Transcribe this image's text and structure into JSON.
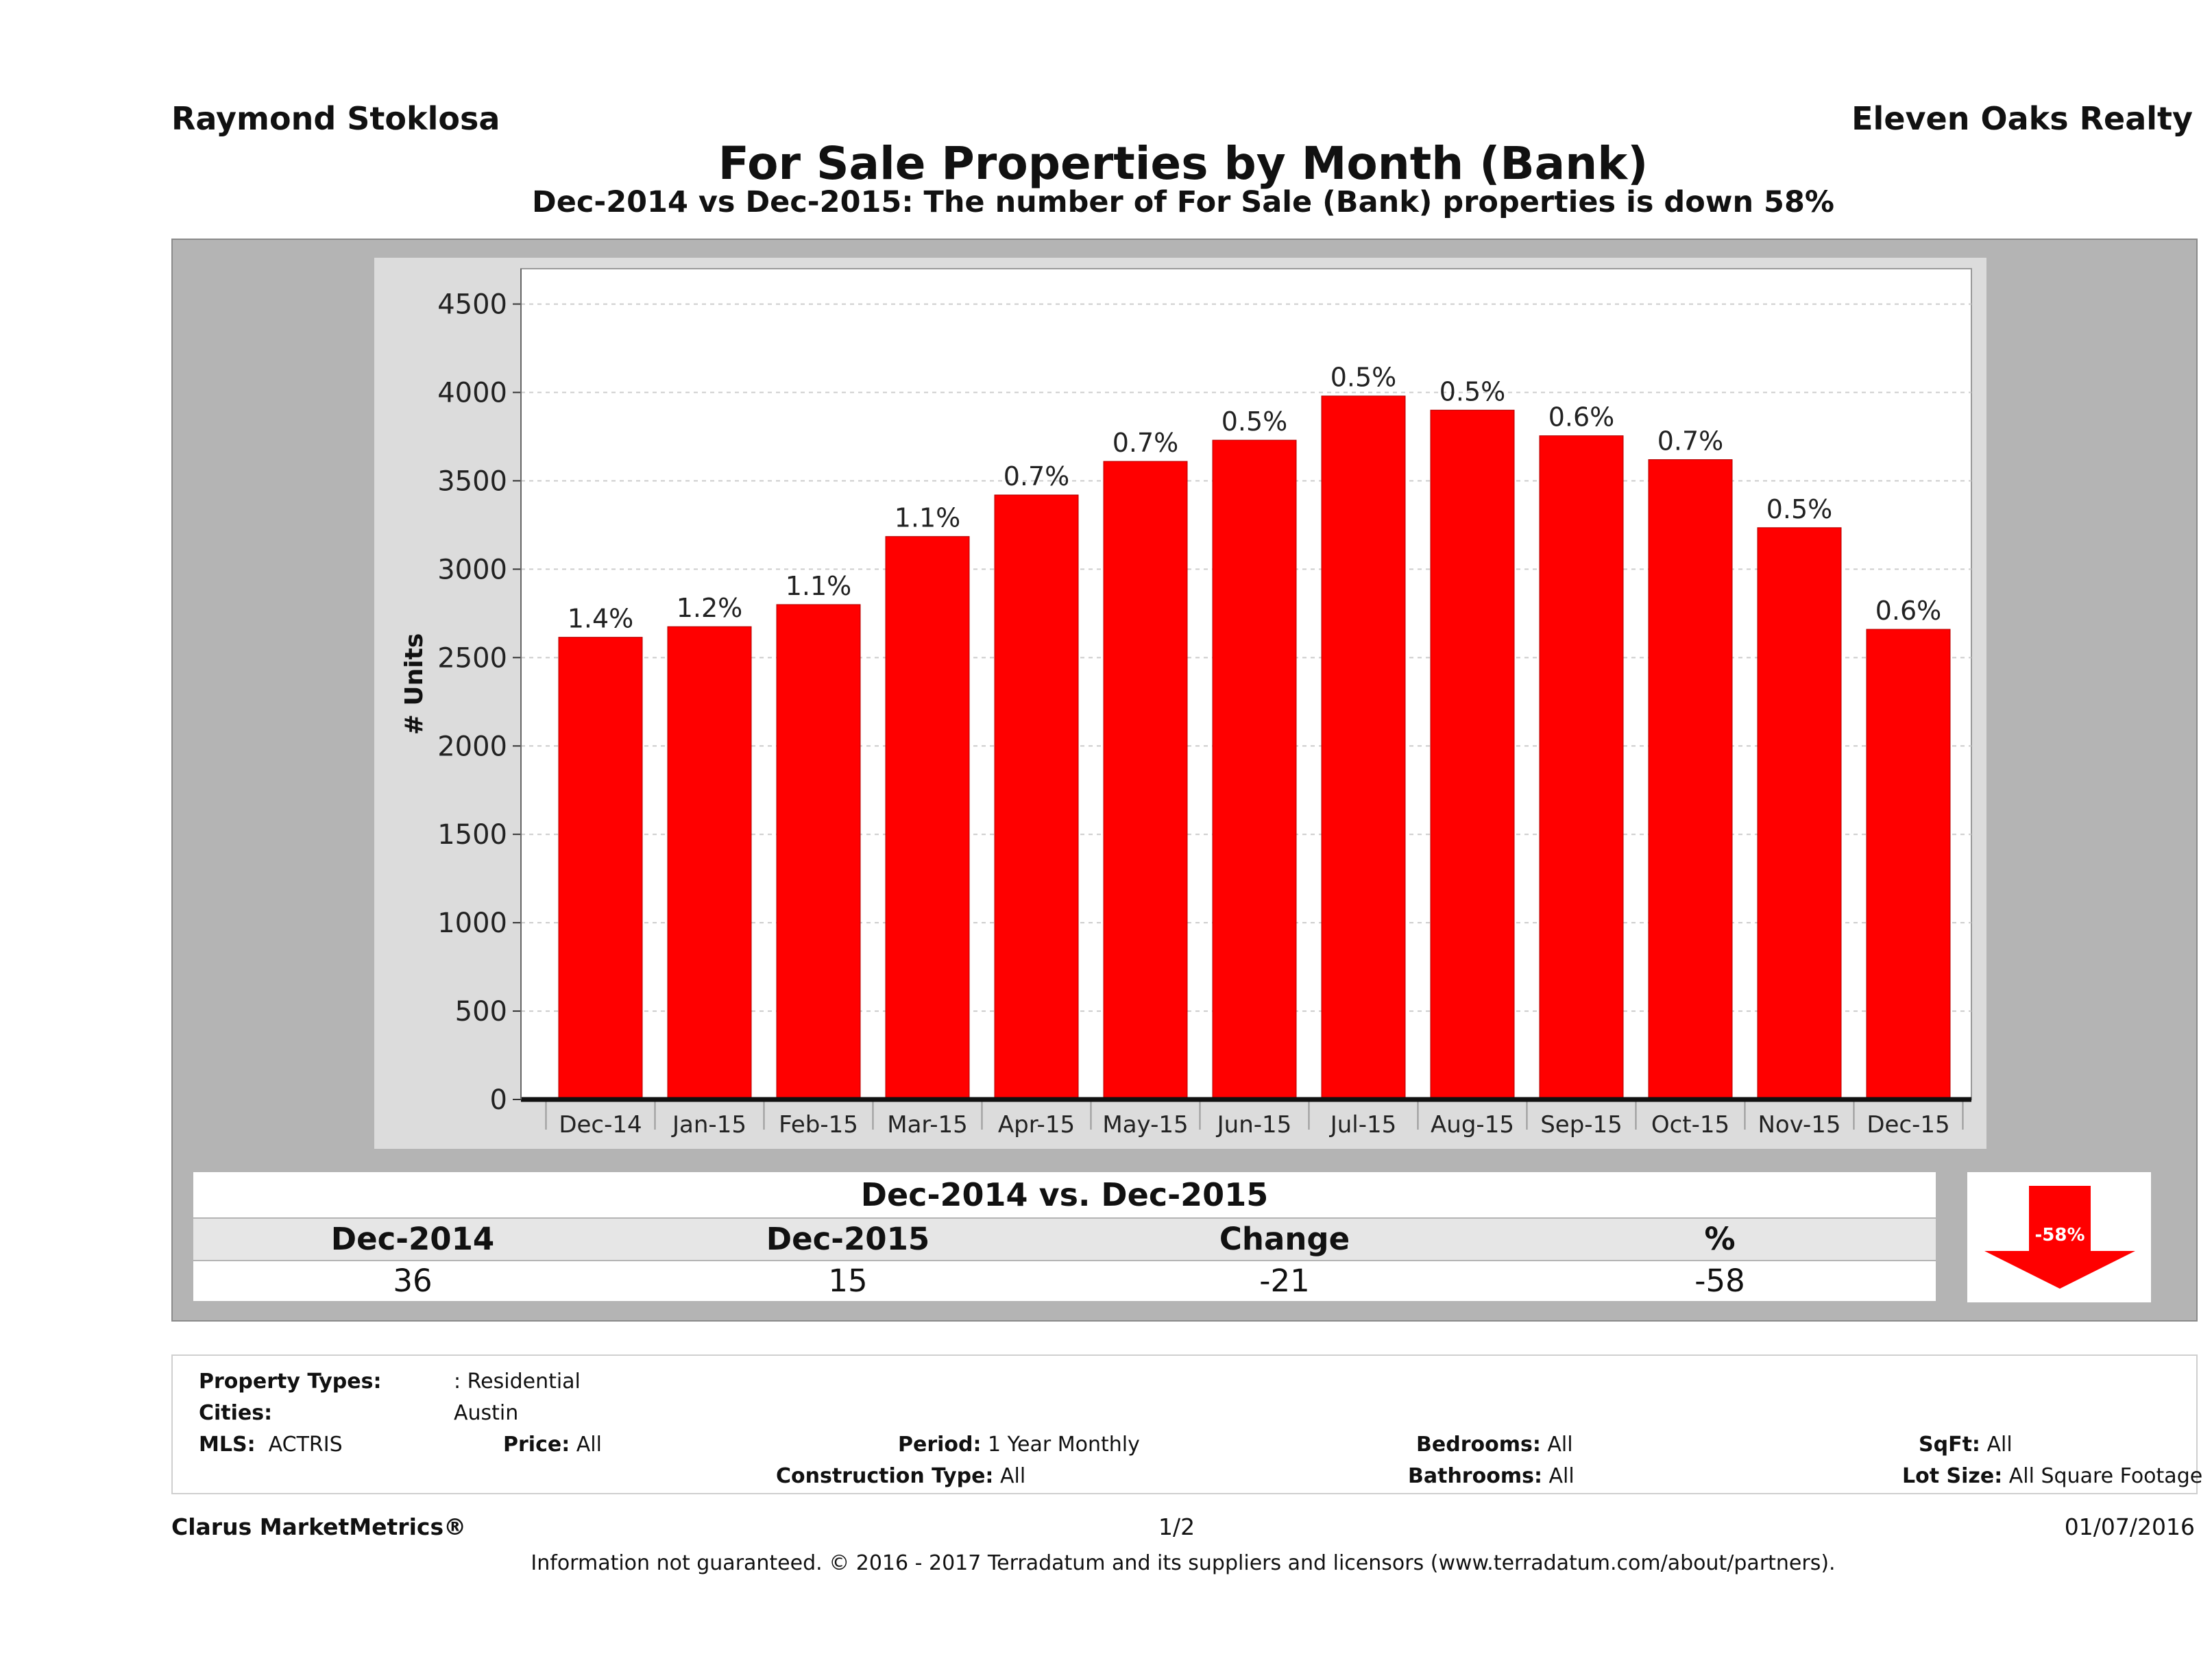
{
  "header": {
    "agent": "Raymond Stoklosa",
    "company": "Eleven Oaks Realty",
    "title": "For Sale Properties by Month (Bank)",
    "subtitle": "Dec-2014 vs Dec-2015: The number of For Sale (Bank)  properties is down 58%"
  },
  "chart_data": {
    "type": "bar",
    "categories": [
      "Dec-14",
      "Jan-15",
      "Feb-15",
      "Mar-15",
      "Apr-15",
      "May-15",
      "Jun-15",
      "Jul-15",
      "Aug-15",
      "Sep-15",
      "Oct-15",
      "Nov-15",
      "Dec-15"
    ],
    "values": [
      2615,
      2675,
      2800,
      3185,
      3420,
      3610,
      3730,
      3980,
      3900,
      3755,
      3620,
      3235,
      2660
    ],
    "data_labels": [
      "1.4%",
      "1.2%",
      "1.1%",
      "1.1%",
      "0.7%",
      "0.7%",
      "0.5%",
      "0.5%",
      "0.5%",
      "0.6%",
      "0.7%",
      "0.5%",
      "0.6%"
    ],
    "ylabel": "# Units",
    "xlabel": "",
    "ylim": [
      0,
      4700
    ],
    "yticks": [
      0,
      500,
      1000,
      1500,
      2000,
      2500,
      3000,
      3500,
      4000,
      4500
    ],
    "grid": true,
    "bar_color": "#ff0000"
  },
  "summary": {
    "heading": "Dec-2014 vs. Dec-2015",
    "labels": [
      "Dec-2014",
      "Dec-2015",
      "Change",
      "%"
    ],
    "values": [
      "36",
      "15",
      "-21",
      "-58"
    ],
    "arrow_label": "-58%",
    "arrow_color": "#ff0000"
  },
  "criteria": {
    "property_types_label": "Property Types:",
    "property_types_value": ": Residential",
    "cities_label": "Cities:",
    "cities_value": "Austin",
    "mls_label": "MLS:",
    "mls_value": "ACTRIS",
    "price_label": "Price:",
    "price_value": "All",
    "period_label": "Period:",
    "period_value": "1 Year Monthly",
    "construction_label": "Construction Type:",
    "construction_value": "All",
    "bedrooms_label": "Bedrooms:",
    "bedrooms_value": "All",
    "bathrooms_label": "Bathrooms:",
    "bathrooms_value": "All",
    "sqft_label": "SqFt:",
    "sqft_value": "All",
    "lotsize_label": "Lot Size:",
    "lotsize_value": "All Square Footage"
  },
  "footer": {
    "brand": "Clarus MarketMetrics®",
    "page": "1/2",
    "date": "01/07/2016",
    "disclaimer": "Information not guaranteed. © 2016 - 2017 Terradatum and its suppliers and licensors (www.terradatum.com/about/partners)."
  }
}
